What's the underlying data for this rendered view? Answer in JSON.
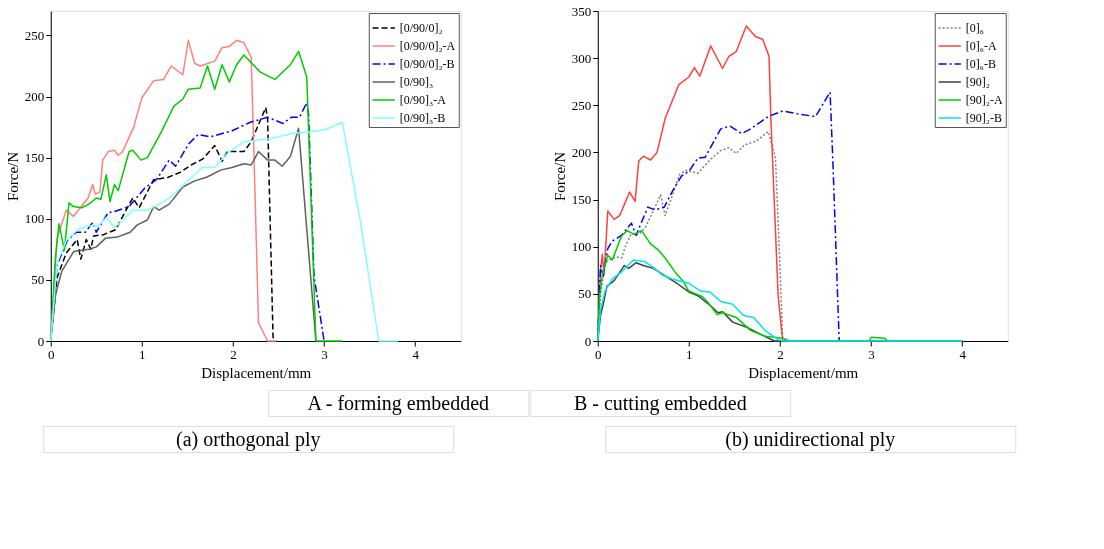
{
  "chart_data": [
    {
      "type": "line",
      "title": "(a) orthogonal ply",
      "xlabel": "Displacement/mm",
      "ylabel": "Force/N",
      "xlim": [
        0,
        4.5
      ],
      "ylim": [
        0,
        270
      ],
      "xticks": [
        0,
        1,
        2,
        3,
        4
      ],
      "yticks": [
        0,
        50,
        100,
        150,
        200,
        250
      ],
      "grid": false,
      "legend": "top right",
      "marker": "none",
      "annotations": [
        "A - forming embedded",
        "B - cutting embedded"
      ],
      "series": [
        {
          "name": "[0/90/0]₂",
          "color": "#000000",
          "line_style": "dashed",
          "x": [
            0,
            0.07,
            0.17,
            0.29,
            0.33,
            0.39,
            0.44,
            0.47,
            0.58,
            0.71,
            0.87,
            0.9,
            0.97,
            1.06,
            1.13,
            1.29,
            1.42,
            1.54,
            1.67,
            1.8,
            1.88,
            1.94,
            2.12,
            2.2,
            2.36,
            2.38,
            2.44,
            2.47
          ],
          "values": [
            0,
            52,
            72,
            83,
            67,
            83,
            75,
            86,
            87,
            91,
            113,
            117,
            109,
            122,
            132,
            134,
            138,
            144,
            149,
            160,
            147,
            155,
            155,
            163,
            191,
            182,
            3,
            0
          ]
        },
        {
          "name": "[0/90/0]₂-A",
          "color": "#ff8080",
          "line_style": "solid",
          "x": [
            0,
            0.07,
            0.17,
            0.25,
            0.41,
            0.46,
            0.49,
            0.54,
            0.57,
            0.63,
            0.7,
            0.74,
            0.79,
            0.91,
            1.0,
            1.13,
            1.24,
            1.32,
            1.45,
            1.51,
            1.58,
            1.64,
            1.8,
            1.88,
            1.96,
            2.04,
            2.12,
            2.2,
            2.23,
            2.28,
            2.38,
            2.48
          ],
          "values": [
            0,
            84,
            107,
            102,
            117,
            128,
            120,
            122,
            148,
            155,
            156,
            152,
            155,
            175,
            199,
            213,
            214,
            225,
            218,
            246,
            227,
            225,
            229,
            240,
            241,
            246,
            244,
            232,
            153,
            15,
            0,
            0
          ]
        },
        {
          "name": "[0/90/0]₂-B",
          "color": "#0000ff",
          "line_style": "dashdot",
          "x": [
            0,
            0.07,
            0.18,
            0.28,
            0.38,
            0.46,
            0.5,
            0.63,
            0.7,
            0.86,
            1.03,
            1.16,
            1.3,
            1.37,
            1.51,
            1.62,
            1.75,
            1.99,
            2.19,
            2.38,
            2.55,
            2.64,
            2.73,
            2.81,
            2.83,
            2.89,
            3.0
          ],
          "values": [
            0,
            62,
            82,
            89,
            89,
            97,
            89,
            105,
            106,
            110,
            125,
            132,
            148,
            143,
            161,
            169,
            167,
            172,
            179,
            183,
            178,
            183,
            183,
            195,
            185,
            53,
            0
          ]
        },
        {
          "name": "[0/90]₃",
          "color": "#606060",
          "line_style": "solid",
          "x": [
            0,
            0.05,
            0.12,
            0.25,
            0.31,
            0.42,
            0.5,
            0.6,
            0.73,
            0.87,
            0.95,
            1.06,
            1.13,
            1.19,
            1.3,
            1.45,
            1.58,
            1.71,
            1.87,
            1.99,
            2.12,
            2.2,
            2.28,
            2.38,
            2.46,
            2.54,
            2.63,
            2.72,
            2.91
          ],
          "values": [
            0,
            37,
            57,
            73,
            74,
            75,
            77,
            84,
            85,
            89,
            95,
            99,
            110,
            107,
            112,
            126,
            131,
            134,
            140,
            142,
            145,
            144,
            155,
            148,
            148,
            143,
            151,
            174,
            0
          ]
        },
        {
          "name": "[0/90]₃-A",
          "color": "#00cc00",
          "line_style": "solid",
          "x": [
            0,
            0.05,
            0.09,
            0.15,
            0.2,
            0.25,
            0.34,
            0.42,
            0.5,
            0.55,
            0.61,
            0.65,
            0.7,
            0.74,
            0.86,
            0.9,
            0.99,
            1.06,
            1.22,
            1.35,
            1.45,
            1.51,
            1.64,
            1.72,
            1.8,
            1.88,
            1.96,
            2.04,
            2.12,
            2.3,
            2.46,
            2.63,
            2.72,
            2.81,
            2.91,
            3.2
          ],
          "values": [
            0,
            67,
            96,
            74,
            113,
            110,
            109,
            112,
            117,
            116,
            136,
            114,
            128,
            123,
            155,
            156,
            148,
            150,
            172,
            192,
            198,
            206,
            207,
            225,
            206,
            226,
            212,
            226,
            234,
            220,
            214,
            226,
            237,
            216,
            0,
            0
          ]
        },
        {
          "name": "[0/90]₃-B",
          "color": "#80ffff",
          "line_style": "solid",
          "x": [
            0,
            0.07,
            0.17,
            0.28,
            0.38,
            0.52,
            0.61,
            0.7,
            0.78,
            0.9,
            1.06,
            1.22,
            1.32,
            1.45,
            1.66,
            1.8,
            1.96,
            2.12,
            2.35,
            2.44,
            2.66,
            2.83,
            3.02,
            3.2,
            3.4,
            3.6,
            3.81
          ],
          "values": [
            0,
            64,
            82,
            90,
            94,
            94,
            101,
            93,
            98,
            107,
            107,
            113,
            118,
            127,
            142,
            142,
            155,
            163,
            165,
            166,
            170,
            171,
            173,
            179,
            97,
            0,
            0
          ]
        }
      ]
    },
    {
      "type": "line",
      "title": "(b) unidirectional ply",
      "xlabel": "Displacement/mm",
      "ylabel": "Force/N",
      "xlim": [
        0,
        4.5
      ],
      "ylim": [
        0,
        350
      ],
      "xticks": [
        0,
        1,
        2,
        3,
        4
      ],
      "yticks": [
        0,
        50,
        100,
        150,
        200,
        250,
        300,
        350
      ],
      "grid": false,
      "legend": "top right",
      "marker": "none",
      "series": [
        {
          "name": "[0]₆",
          "color": "#808080",
          "line_style": "dotted",
          "x": [
            0,
            0.03,
            0.08,
            0.16,
            0.21,
            0.26,
            0.31,
            0.37,
            0.45,
            0.52,
            0.6,
            0.69,
            0.74,
            0.81,
            0.9,
            0.97,
            1.1,
            1.23,
            1.35,
            1.44,
            1.52,
            1.61,
            1.74,
            1.87,
            1.95,
            2.0,
            2.03
          ],
          "values": [
            0,
            48,
            83,
            88,
            89,
            88,
            102,
            114,
            113,
            120,
            136,
            155,
            133,
            152,
            177,
            181,
            178,
            192,
            202,
            205,
            199,
            208,
            212,
            222,
            195,
            80,
            0
          ]
        },
        {
          "name": "[0]₆-A",
          "color": "#ff4040",
          "line_style": "solid",
          "x": [
            0,
            0.03,
            0.05,
            0.07,
            0.11,
            0.18,
            0.24,
            0.35,
            0.41,
            0.45,
            0.5,
            0.58,
            0.65,
            0.74,
            0.89,
            1.0,
            1.06,
            1.12,
            1.24,
            1.37,
            1.44,
            1.52,
            1.63,
            1.73,
            1.81,
            1.88,
            1.9,
            1.98,
            2.03
          ],
          "values": [
            0,
            73,
            92,
            70,
            138,
            129,
            133,
            158,
            148,
            191,
            196,
            192,
            200,
            236,
            272,
            280,
            290,
            281,
            313,
            289,
            302,
            307,
            334,
            323,
            320,
            302,
            236,
            48,
            0
          ]
        },
        {
          "name": "[0]₆-B",
          "color": "#0000ff",
          "line_style": "dashdot",
          "x": [
            0,
            0.03,
            0.06,
            0.11,
            0.16,
            0.26,
            0.37,
            0.42,
            0.55,
            0.63,
            0.73,
            0.82,
            0.92,
            1.0,
            1.1,
            1.18,
            1.35,
            1.45,
            1.58,
            1.68,
            1.87,
            2.03,
            2.19,
            2.39,
            2.55,
            2.58,
            2.65
          ],
          "values": [
            0,
            80,
            69,
            98,
            106,
            112,
            125,
            112,
            142,
            139,
            142,
            159,
            175,
            180,
            194,
            195,
            225,
            228,
            220,
            225,
            238,
            244,
            241,
            238,
            264,
            192,
            0
          ]
        },
        {
          "name": "[90]₂",
          "color": "#404040",
          "line_style": "solid",
          "x": [
            0,
            0.03,
            0.06,
            0.1,
            0.18,
            0.29,
            0.34,
            0.42,
            0.5,
            0.61,
            0.74,
            0.87,
            1.0,
            1.1,
            1.23,
            1.32,
            1.37,
            1.48,
            1.65,
            1.81,
            1.94,
            4.0
          ],
          "values": [
            0,
            27,
            39,
            58,
            64,
            80,
            77,
            83,
            80,
            77,
            69,
            61,
            52,
            48,
            38,
            30,
            31,
            20,
            14,
            6,
            0,
            0
          ]
        },
        {
          "name": "[90]₂-A",
          "color": "#00cc00",
          "line_style": "solid",
          "x": [
            0,
            0.02,
            0.05,
            0.11,
            0.16,
            0.26,
            0.32,
            0.4,
            0.48,
            0.58,
            0.66,
            0.74,
            0.85,
            0.94,
            1.0,
            1.15,
            1.21,
            1.31,
            1.37,
            1.52,
            1.68,
            1.84,
            2.03,
            2.1,
            2.98,
            3.0,
            3.15,
            3.18,
            4.0
          ],
          "values": [
            0,
            48,
            70,
            91,
            86,
            111,
            117,
            113,
            117,
            103,
            97,
            88,
            73,
            63,
            53,
            47,
            41,
            28,
            30,
            25,
            11,
            5,
            3,
            0,
            0,
            4,
            3,
            0,
            0
          ]
        },
        {
          "name": "[90]₂-B",
          "color": "#00e5ee",
          "line_style": "solid",
          "x": [
            0,
            0.03,
            0.08,
            0.16,
            0.26,
            0.39,
            0.52,
            0.61,
            0.71,
            0.81,
            1.0,
            1.13,
            1.23,
            1.35,
            1.48,
            1.6,
            1.71,
            1.84,
            1.97,
            2.03,
            4.0
          ],
          "values": [
            0,
            33,
            53,
            66,
            73,
            86,
            84,
            78,
            70,
            66,
            61,
            53,
            52,
            42,
            39,
            27,
            25,
            11,
            2,
            0,
            0
          ]
        }
      ]
    }
  ]
}
